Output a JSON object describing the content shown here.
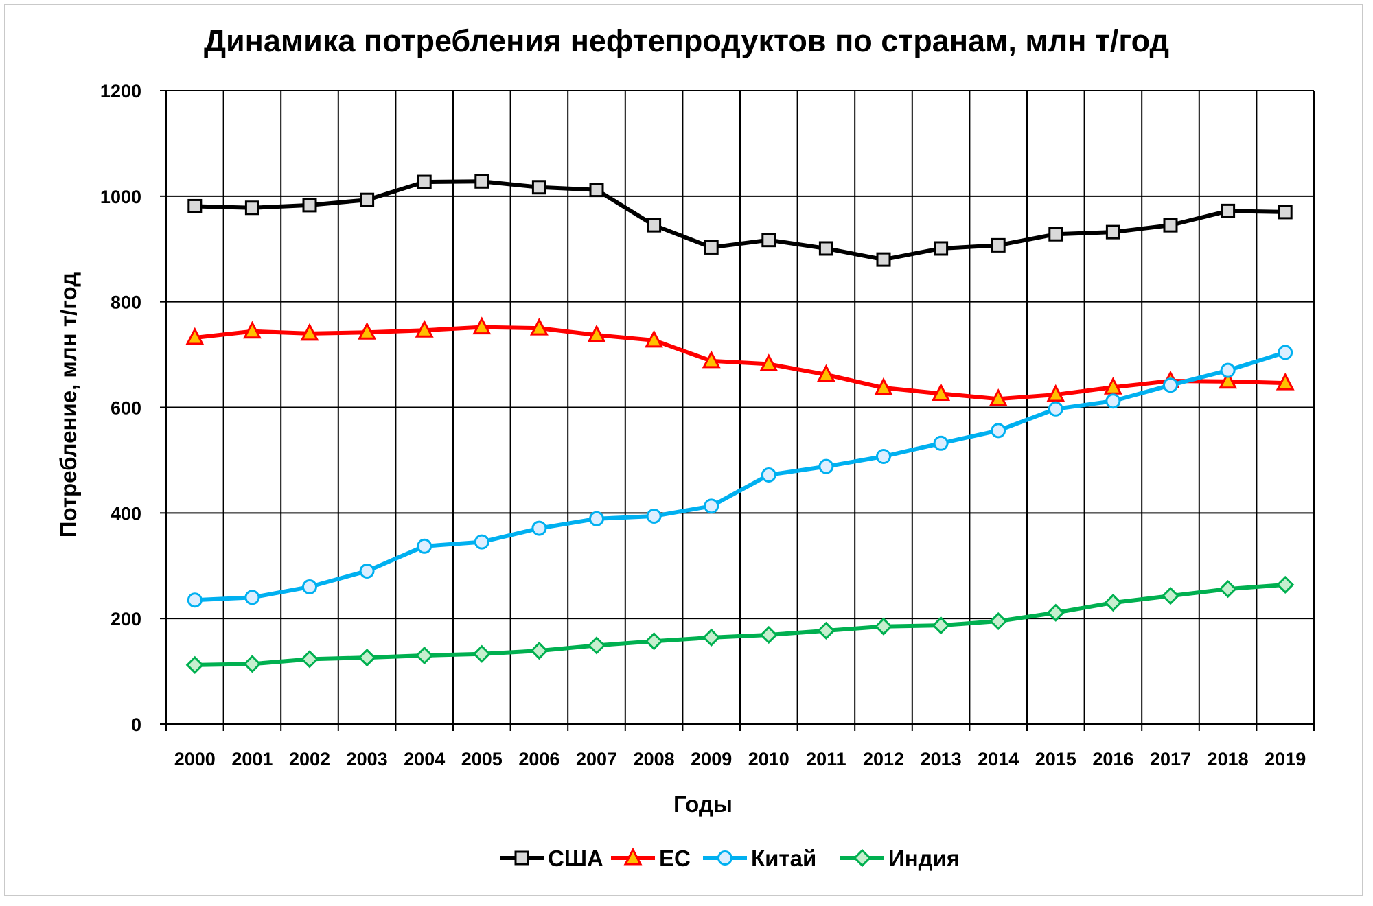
{
  "chart_data": {
    "type": "line",
    "title": "Динамика потребления нефтепродуктов по странам, млн т/год",
    "xlabel": "Годы",
    "ylabel": "Потребление, млн т/год",
    "ylim": [
      0,
      1200
    ],
    "yticks": [
      0,
      200,
      400,
      600,
      800,
      1000,
      1200
    ],
    "grid": true,
    "legend_position": "bottom",
    "categories": [
      "2000",
      "2001",
      "2002",
      "2003",
      "2004",
      "2005",
      "2006",
      "2007",
      "2008",
      "2009",
      "2010",
      "2011",
      "2012",
      "2013",
      "2014",
      "2015",
      "2016",
      "2017",
      "2018",
      "2019"
    ],
    "series": [
      {
        "name": "США",
        "color": "#000000",
        "marker": "square",
        "marker_fill": "#d9d9d9",
        "values": [
          981,
          978,
          983,
          993,
          1027,
          1028,
          1017,
          1012,
          945,
          903,
          917,
          901,
          880,
          901,
          907,
          928,
          932,
          945,
          972,
          970
        ]
      },
      {
        "name": "ЕС",
        "color": "#ff0000",
        "marker": "triangle",
        "marker_fill": "#ffc000",
        "values": [
          732,
          744,
          740,
          742,
          746,
          752,
          750,
          737,
          727,
          688,
          682,
          662,
          637,
          626,
          616,
          624,
          638,
          650,
          649,
          646
        ]
      },
      {
        "name": "Китай",
        "color": "#00b0f0",
        "marker": "circle",
        "marker_fill": "#ddeeff",
        "values": [
          235,
          240,
          260,
          290,
          337,
          345,
          371,
          389,
          394,
          413,
          472,
          488,
          507,
          532,
          556,
          597,
          612,
          642,
          670,
          704
        ]
      },
      {
        "name": "Индия",
        "color": "#00b050",
        "marker": "diamond",
        "marker_fill": "#c6efce",
        "values": [
          112,
          114,
          123,
          126,
          130,
          133,
          139,
          149,
          157,
          164,
          169,
          177,
          185,
          187,
          195,
          211,
          230,
          243,
          256,
          264
        ]
      }
    ]
  }
}
